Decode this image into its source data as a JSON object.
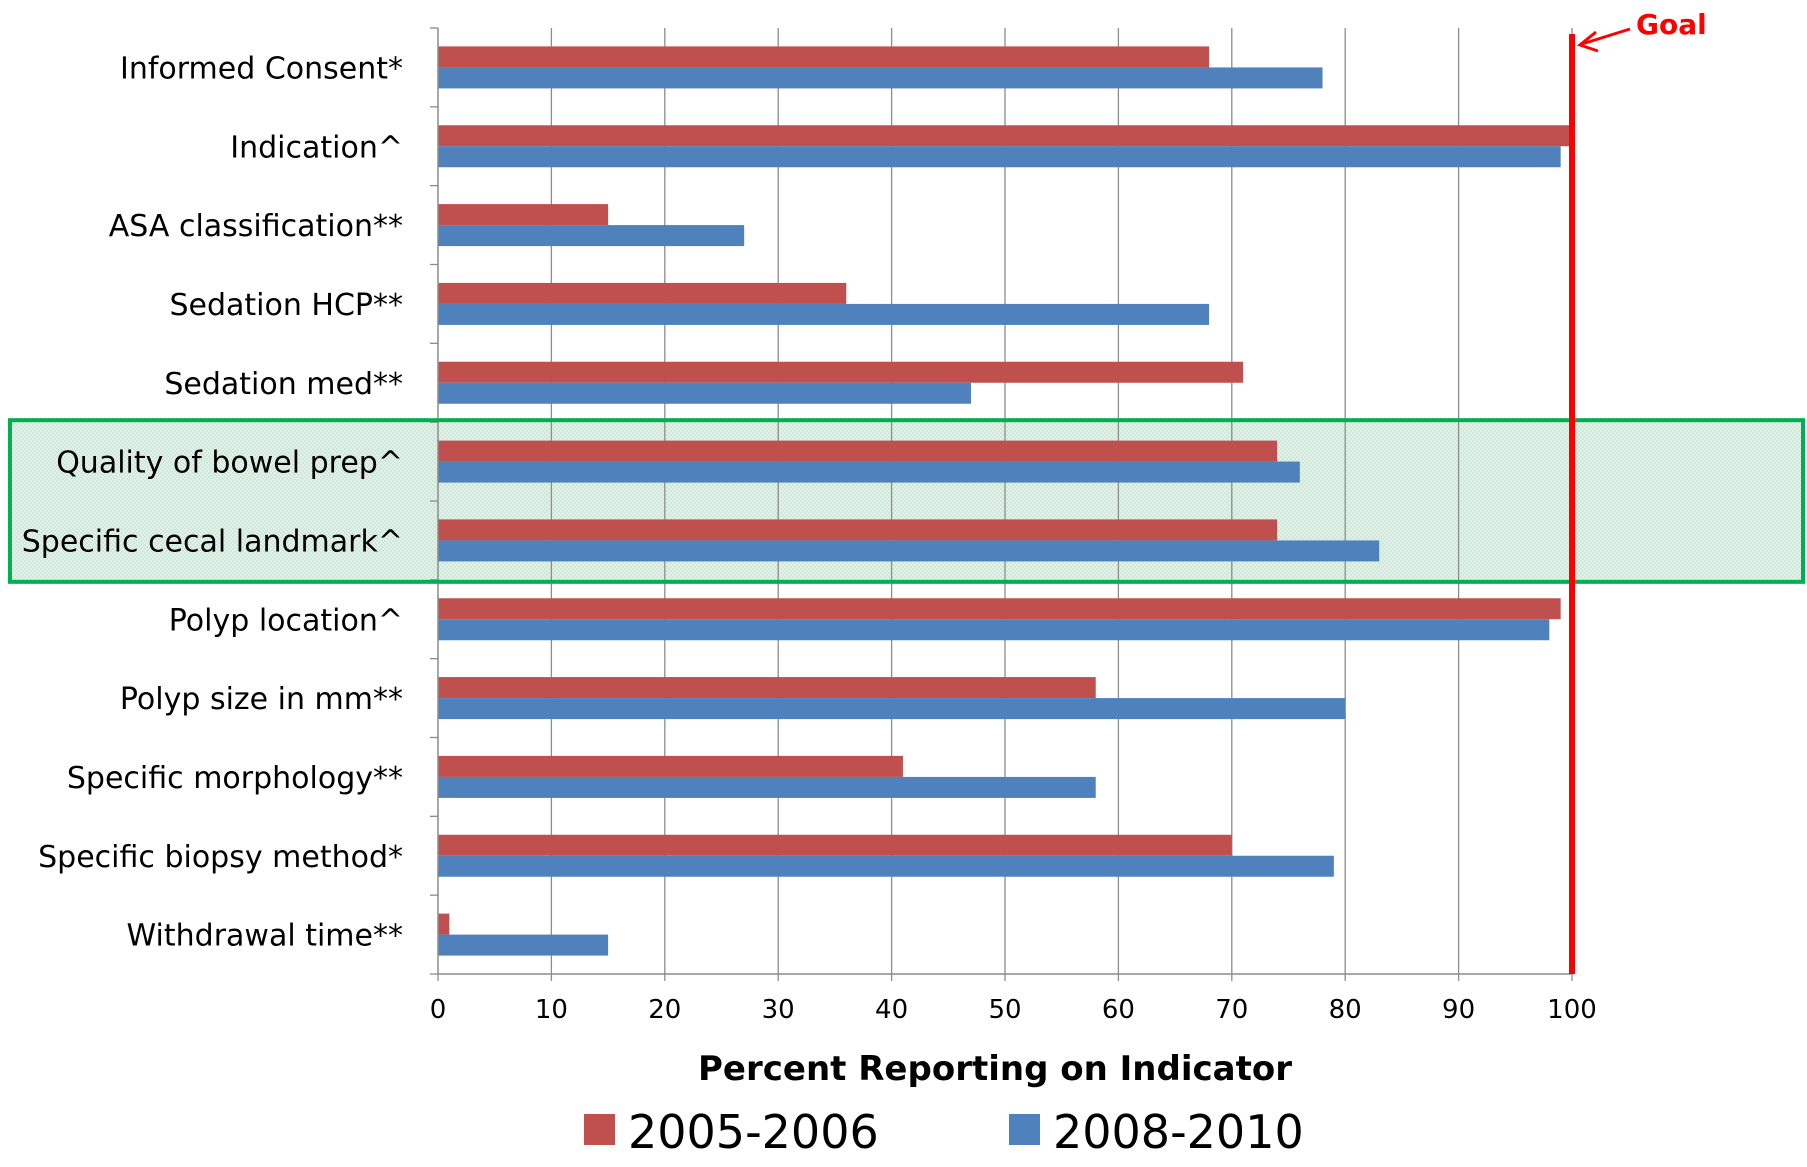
{
  "chart_data": {
    "type": "bar",
    "orientation": "horizontal",
    "categories": [
      "Informed Consent*",
      "Indication^",
      "ASA classification**",
      "Sedation HCP**",
      "Sedation med**",
      "Quality of bowel prep^",
      "Specific cecal landmark^",
      "Polyp location^",
      "Polyp size in mm**",
      "Specific morphology**",
      "Specific biopsy method*",
      "Withdrawal time**"
    ],
    "series": [
      {
        "name": "2005-2006",
        "color": "#c0504d",
        "values": [
          68,
          100,
          15,
          36,
          71,
          74,
          74,
          99,
          58,
          41,
          70,
          1
        ]
      },
      {
        "name": "2008-2010",
        "color": "#4f81bd",
        "values": [
          78,
          99,
          27,
          68,
          47,
          76,
          83,
          98,
          80,
          58,
          79,
          15
        ]
      }
    ],
    "xlabel": "Percent Reporting on Indicator",
    "ylabel": "",
    "xlim": [
      0,
      100
    ],
    "xticks": [
      0,
      10,
      20,
      30,
      40,
      50,
      60,
      70,
      80,
      90,
      100
    ],
    "grid": true,
    "legend": "bottom",
    "goal": {
      "label": "Goal",
      "value": 100,
      "color": "#ff0000"
    },
    "highlight": {
      "categories": [
        "Quality of bowel prep^",
        "Specific cecal landmark^"
      ],
      "border_color": "#00b050",
      "fill_color": "#d8ecdf"
    }
  }
}
